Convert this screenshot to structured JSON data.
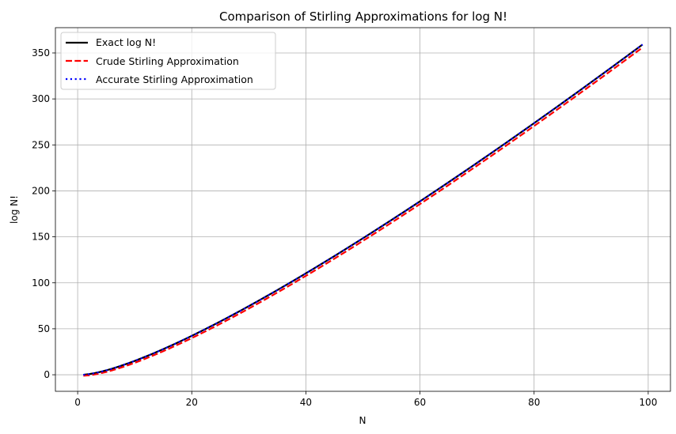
{
  "chart_data": {
    "type": "line",
    "title": "Comparison of Stirling Approximations for log N!",
    "xlabel": "N",
    "ylabel": "log N!",
    "xlim": [
      -3.9,
      103.9
    ],
    "ylim": [
      -18.0,
      377.5
    ],
    "xticks": [
      0,
      20,
      40,
      60,
      80,
      100
    ],
    "yticks": [
      0,
      50,
      100,
      150,
      200,
      250,
      300,
      350
    ],
    "grid": true,
    "legend_position": "top-left",
    "x_range": [
      1,
      99
    ],
    "series": [
      {
        "name": "Exact log N!",
        "color": "#000000",
        "style": "solid",
        "formula": "exact"
      },
      {
        "name": "Crude Stirling Approximation",
        "color": "#ff0000",
        "style": "dashed",
        "formula": "crude"
      },
      {
        "name": "Accurate Stirling Approximation",
        "color": "#0000ff",
        "style": "dotted",
        "formula": "accurate"
      }
    ]
  }
}
